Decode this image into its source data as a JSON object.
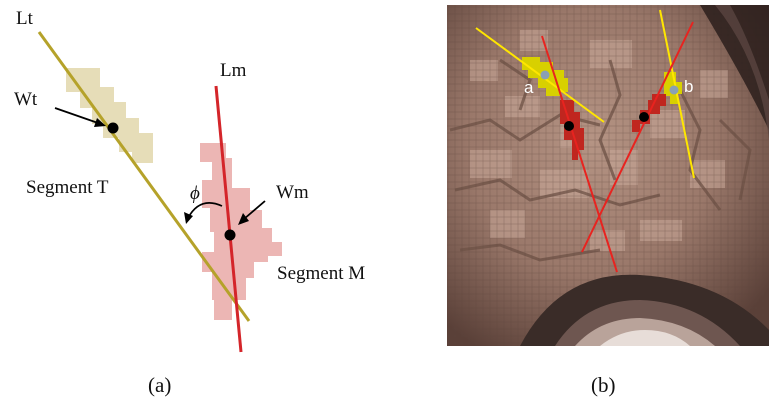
{
  "panel_a": {
    "labels": {
      "line_t": "Lt",
      "line_m": "Lm",
      "weight_t": "Wt",
      "weight_m": "Wm",
      "segment_t": "Segment T",
      "segment_m": "Segment M",
      "angle": "ϕ"
    },
    "colors": {
      "line_t": "#b5a22a",
      "line_m": "#d4252a",
      "segment_t": "#e6ddb8",
      "segment_m": "#ecb6b4",
      "point": "#000000"
    },
    "caption": "(a)"
  },
  "panel_b": {
    "labels": {
      "segment_a": "a",
      "segment_b": "b"
    },
    "colors": {
      "photo_bg": "#8a6e60",
      "yellow_line": "#ffe600",
      "red_line": "#e8231f",
      "yellow_segment": "#d8d000",
      "red_segment": "#c0261f",
      "marker": "#8aa0b4",
      "point": "#000000"
    },
    "caption": "(b)"
  }
}
